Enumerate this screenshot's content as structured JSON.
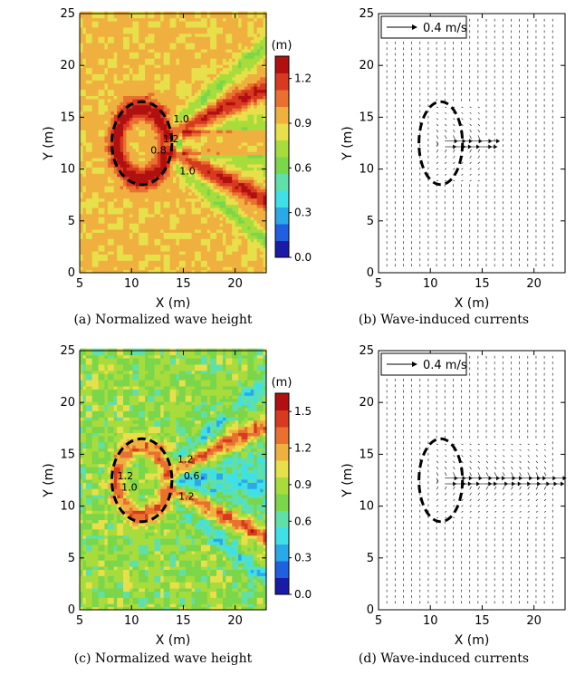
{
  "chart_data": [
    {
      "type": "heatmap",
      "caption": "(a) Normalized wave height",
      "xlabel": "X (m)",
      "ylabel": "Y (m)",
      "xlim": [
        5,
        23
      ],
      "ylim": [
        0,
        25
      ],
      "xticks": [
        5,
        10,
        15,
        20
      ],
      "yticks": [
        0,
        5,
        10,
        15,
        20,
        25
      ],
      "colorbar": {
        "unit": "(m)",
        "ticks": [
          0.0,
          0.3,
          0.6,
          0.9,
          1.2
        ],
        "tick_labels": [
          "0.0",
          "0.3",
          "0.6",
          "0.9",
          "1.2"
        ],
        "range": [
          0.0,
          1.35
        ]
      },
      "contour_labels": [
        {
          "text": "1.0",
          "x": 14.8,
          "y": 14.5
        },
        {
          "text": "0.8",
          "x": 12.6,
          "y": 11.5
        },
        {
          "text": "1.2",
          "x": 13.8,
          "y": 12.6
        },
        {
          "text": "1.0",
          "x": 15.4,
          "y": 9.5
        }
      ],
      "structure": {
        "shape": "ellipse",
        "cx": 11.0,
        "cy": 12.5,
        "rx": 2.9,
        "ry": 4.0
      }
    },
    {
      "type": "quiver",
      "caption": "(b) Wave-induced currents",
      "xlabel": "X (m)",
      "ylabel": "Y (m)",
      "xlim": [
        5,
        23
      ],
      "ylim": [
        0,
        25
      ],
      "xticks": [
        5,
        10,
        15,
        20
      ],
      "yticks": [
        0,
        5,
        10,
        15,
        20,
        25
      ],
      "legend": {
        "label": "0.4 m/s",
        "position": "top-left"
      },
      "structure": {
        "shape": "ellipse",
        "cx": 11.0,
        "cy": 12.5,
        "rx": 2.1,
        "ry": 4.0
      },
      "jet": {
        "x_start": 11.0,
        "x_end": 15.0,
        "y": 12.5
      }
    },
    {
      "type": "heatmap",
      "caption": "(c) Normalized wave height",
      "xlabel": "X (m)",
      "ylabel": "Y (m)",
      "xlim": [
        5,
        23
      ],
      "ylim": [
        0,
        25
      ],
      "xticks": [
        5,
        10,
        15,
        20
      ],
      "yticks": [
        0,
        5,
        10,
        15,
        20,
        25
      ],
      "colorbar": {
        "unit": "(m)",
        "ticks": [
          0.0,
          0.3,
          0.6,
          0.9,
          1.2,
          1.5
        ],
        "tick_labels": [
          "0.0",
          "0.3",
          "0.6",
          "0.9",
          "1.2",
          "1.5"
        ],
        "range": [
          0.0,
          1.65
        ]
      },
      "contour_labels": [
        {
          "text": "1.2",
          "x": 15.2,
          "y": 14.2
        },
        {
          "text": "0.6",
          "x": 15.8,
          "y": 12.6
        },
        {
          "text": "1.0",
          "x": 9.8,
          "y": 11.5
        },
        {
          "text": "1.2",
          "x": 9.4,
          "y": 12.6
        },
        {
          "text": "1.2",
          "x": 15.3,
          "y": 10.6
        }
      ],
      "structure": {
        "shape": "ellipse",
        "cx": 11.0,
        "cy": 12.5,
        "rx": 2.9,
        "ry": 4.0
      }
    },
    {
      "type": "quiver",
      "caption": "(d) Wave-induced currents",
      "xlabel": "X (m)",
      "ylabel": "Y (m)",
      "xlim": [
        5,
        23
      ],
      "ylim": [
        0,
        25
      ],
      "xticks": [
        5,
        10,
        15,
        20
      ],
      "yticks": [
        0,
        5,
        10,
        15,
        20,
        25
      ],
      "legend": {
        "label": "0.4 m/s",
        "position": "top-left"
      },
      "structure": {
        "shape": "ellipse",
        "cx": 11.0,
        "cy": 12.5,
        "rx": 2.1,
        "ry": 4.0
      },
      "jet": {
        "x_start": 11.0,
        "x_end": 21.5,
        "y": 12.5
      }
    }
  ],
  "colors": {
    "scale": [
      "#1a1aa8",
      "#2060e0",
      "#2aa8e8",
      "#40e0e8",
      "#60e0a8",
      "#7ad64a",
      "#a8dc3c",
      "#e8e04a",
      "#f0b040",
      "#e87030",
      "#d83a20",
      "#b01010"
    ]
  }
}
